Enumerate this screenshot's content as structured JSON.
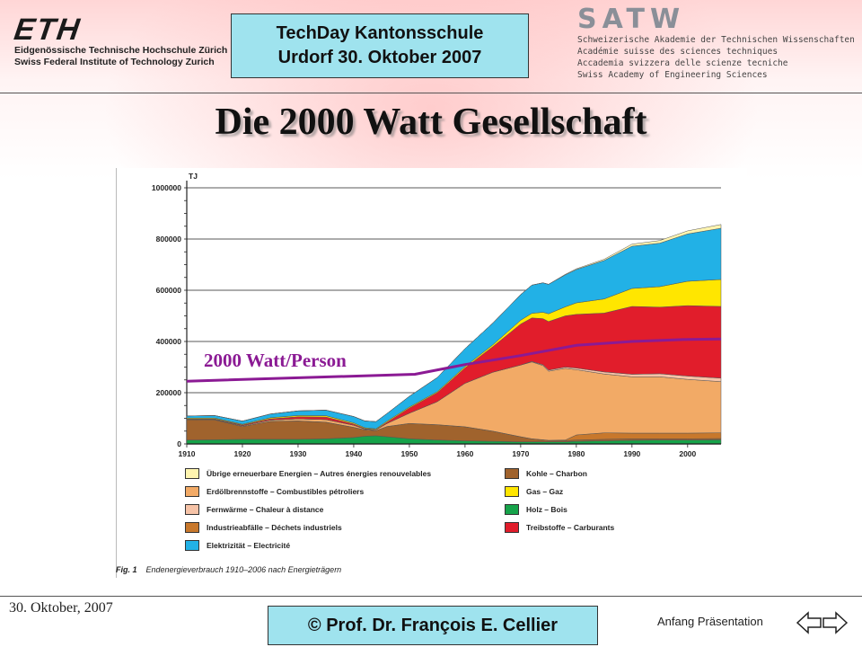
{
  "header": {
    "eth": {
      "wordmark": "ETH",
      "line1": "Eidgenössische Technische Hochschule Zürich",
      "line2": "Swiss Federal Institute of Technology Zurich"
    },
    "event": {
      "line1": "TechDay Kantonsschule",
      "line2": "Urdorf 30. Oktober 2007"
    },
    "satw": {
      "wordmark": "SATW",
      "lines": [
        "Schweizerische Akademie der Technischen Wissenschaften",
        "Académie suisse des sciences techniques",
        "Accademia svizzera delle scienze tecniche",
        "Swiss Academy of Engineering Sciences"
      ]
    }
  },
  "slide_title": "Die 2000 Watt Gesellschaft",
  "chart_data": {
    "type": "area",
    "stacked": true,
    "unit_label": "TJ",
    "x": [
      1910,
      1915,
      1920,
      1925,
      1930,
      1935,
      1940,
      1942,
      1944,
      1946,
      1950,
      1955,
      1960,
      1965,
      1970,
      1972,
      1974,
      1975,
      1978,
      1980,
      1985,
      1990,
      1995,
      2000,
      2006
    ],
    "xlim": [
      1910,
      2006
    ],
    "ylim": [
      0,
      1000000
    ],
    "x_ticks": [
      "1910",
      "1920",
      "1930",
      "1940",
      "1950",
      "1960",
      "1970",
      "1980",
      "1990",
      "2000"
    ],
    "y_ticks": [
      "0",
      "200000",
      "400000",
      "600000",
      "800000",
      "1000000"
    ],
    "grid": true,
    "series": [
      {
        "name": "Holz – Bois",
        "color": "#16a34a",
        "values": [
          15000,
          16000,
          18000,
          18000,
          18000,
          20000,
          25000,
          30000,
          32000,
          28000,
          20000,
          15000,
          12000,
          10000,
          8000,
          8000,
          8000,
          8000,
          8000,
          10000,
          12000,
          14000,
          15000,
          15000,
          16000
        ]
      },
      {
        "name": "Kohle – Charbon",
        "color": "#a0632d",
        "values": [
          80000,
          78000,
          50000,
          70000,
          72000,
          65000,
          40000,
          25000,
          20000,
          40000,
          60000,
          60000,
          55000,
          40000,
          20000,
          12000,
          8000,
          6000,
          5000,
          5000,
          6000,
          6000,
          5000,
          5000,
          5000
        ]
      },
      {
        "name": "Industrieabfälle – Déchets industriels",
        "color": "#c8782c",
        "values": [
          0,
          0,
          0,
          0,
          0,
          0,
          0,
          0,
          0,
          0,
          0,
          0,
          0,
          0,
          0,
          0,
          0,
          0,
          2000,
          20000,
          25000,
          22000,
          22000,
          22000,
          22000
        ]
      },
      {
        "name": "Erdölbrennstoffe – Combustibles pétroliers",
        "color": "#f2aa66",
        "values": [
          2000,
          2000,
          3000,
          5000,
          8000,
          10000,
          8000,
          3000,
          3000,
          12000,
          40000,
          90000,
          170000,
          230000,
          280000,
          300000,
          290000,
          270000,
          280000,
          255000,
          230000,
          220000,
          220000,
          210000,
          200000
        ]
      },
      {
        "name": "Fernwärme – Chaleur à distance",
        "color": "#f6c3a7",
        "values": [
          0,
          0,
          0,
          0,
          0,
          0,
          0,
          0,
          0,
          0,
          0,
          0,
          0,
          0,
          0,
          2000,
          3000,
          4000,
          5000,
          6000,
          8000,
          10000,
          12000,
          13000,
          14000
        ]
      },
      {
        "name": "Treibstoffe – Carburants",
        "color": "#e11d2b",
        "values": [
          1000,
          2000,
          3000,
          5000,
          8000,
          10000,
          5000,
          2000,
          1000,
          5000,
          20000,
          35000,
          60000,
          100000,
          160000,
          170000,
          180000,
          190000,
          200000,
          210000,
          230000,
          265000,
          260000,
          275000,
          280000
        ]
      },
      {
        "name": "Gas – Gaz",
        "color": "#ffe600",
        "values": [
          3000,
          3000,
          3000,
          4000,
          5000,
          5000,
          4000,
          3000,
          3000,
          4000,
          4000,
          4000,
          5000,
          7000,
          15000,
          18000,
          25000,
          30000,
          35000,
          45000,
          55000,
          70000,
          80000,
          95000,
          105000
        ]
      },
      {
        "name": "Elektrizität – Electricité",
        "color": "#22b1e6",
        "values": [
          8000,
          10000,
          12000,
          15000,
          18000,
          22000,
          25000,
          27000,
          28000,
          30000,
          42000,
          55000,
          70000,
          85000,
          100000,
          110000,
          115000,
          115000,
          125000,
          130000,
          150000,
          165000,
          170000,
          185000,
          200000
        ]
      },
      {
        "name": "Übrige erneuerbare Energien – Autres énergies renouvelables",
        "color": "#fff5b0",
        "values": [
          0,
          0,
          0,
          0,
          0,
          0,
          0,
          0,
          0,
          0,
          0,
          0,
          0,
          0,
          0,
          0,
          0,
          0,
          2000,
          3000,
          5000,
          8000,
          10000,
          12000,
          15000
        ]
      }
    ],
    "overlay": {
      "label": "2000 Watt/Person",
      "color": "#8b1a94",
      "x": [
        1910,
        1951,
        1960,
        1970,
        1980,
        1990,
        2000,
        2006
      ],
      "values": [
        245000,
        272000,
        310000,
        345000,
        385000,
        400000,
        408000,
        410000
      ]
    },
    "legend_position": "below",
    "caption_prefix": "Fig. 1",
    "caption_text": "Endenergieverbrauch 1910–2006 nach Energieträgern"
  },
  "legend_order": [
    8,
    3,
    4,
    2,
    7,
    1,
    6,
    0,
    5
  ],
  "footer": {
    "date": "30. Oktober, 2007",
    "author": "©  Prof. Dr. François E. Cellier",
    "nav_label": "Anfang Präsentation"
  }
}
